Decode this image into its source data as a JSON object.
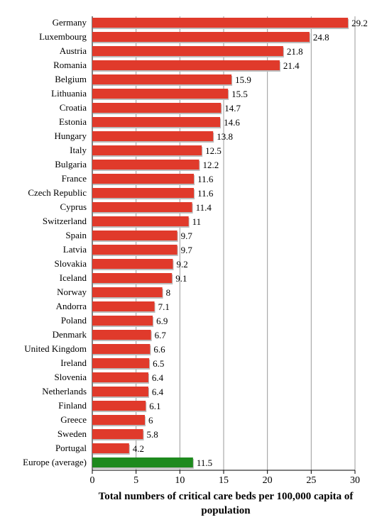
{
  "chart_data": {
    "type": "hbar",
    "xlabel": "Total numbers of critical care beds per 100,000 capita of population",
    "categories": [
      "Germany",
      "Luxembourg",
      "Austria",
      "Romania",
      "Belgium",
      "Lithuania",
      "Croatia",
      "Estonia",
      "Hungary",
      "Italy",
      "Bulgaria",
      "France",
      "Czech Republic",
      "Cyprus",
      "Switzerland",
      "Spain",
      "Latvia",
      "Slovakia",
      "Iceland",
      "Norway",
      "Andorra",
      "Poland",
      "Denmark",
      "United Kingdom",
      "Ireland",
      "Slovenia",
      "Netherlands",
      "Finland",
      "Greece",
      "Sweden",
      "Portugal",
      "Europe (average)"
    ],
    "values": [
      29.2,
      24.8,
      21.8,
      21.4,
      15.9,
      15.5,
      14.7,
      14.6,
      13.8,
      12.5,
      12.2,
      11.6,
      11.6,
      11.4,
      11,
      9.7,
      9.7,
      9.2,
      9.1,
      8,
      7.1,
      6.9,
      6.7,
      6.6,
      6.5,
      6.4,
      6.4,
      6.1,
      6,
      5.8,
      4.2,
      11.5
    ],
    "colors": [
      "#e03a2b",
      "#e03a2b",
      "#e03a2b",
      "#e03a2b",
      "#e03a2b",
      "#e03a2b",
      "#e03a2b",
      "#e03a2b",
      "#e03a2b",
      "#e03a2b",
      "#e03a2b",
      "#e03a2b",
      "#e03a2b",
      "#e03a2b",
      "#e03a2b",
      "#e03a2b",
      "#e03a2b",
      "#e03a2b",
      "#e03a2b",
      "#e03a2b",
      "#e03a2b",
      "#e03a2b",
      "#e03a2b",
      "#e03a2b",
      "#e03a2b",
      "#e03a2b",
      "#e03a2b",
      "#e03a2b",
      "#e03a2b",
      "#e03a2b",
      "#e03a2b",
      "#1e8a1e"
    ],
    "xlim": [
      0,
      30
    ],
    "xticks": [
      0,
      5,
      10,
      15,
      20,
      25,
      30
    ],
    "grid": true
  }
}
